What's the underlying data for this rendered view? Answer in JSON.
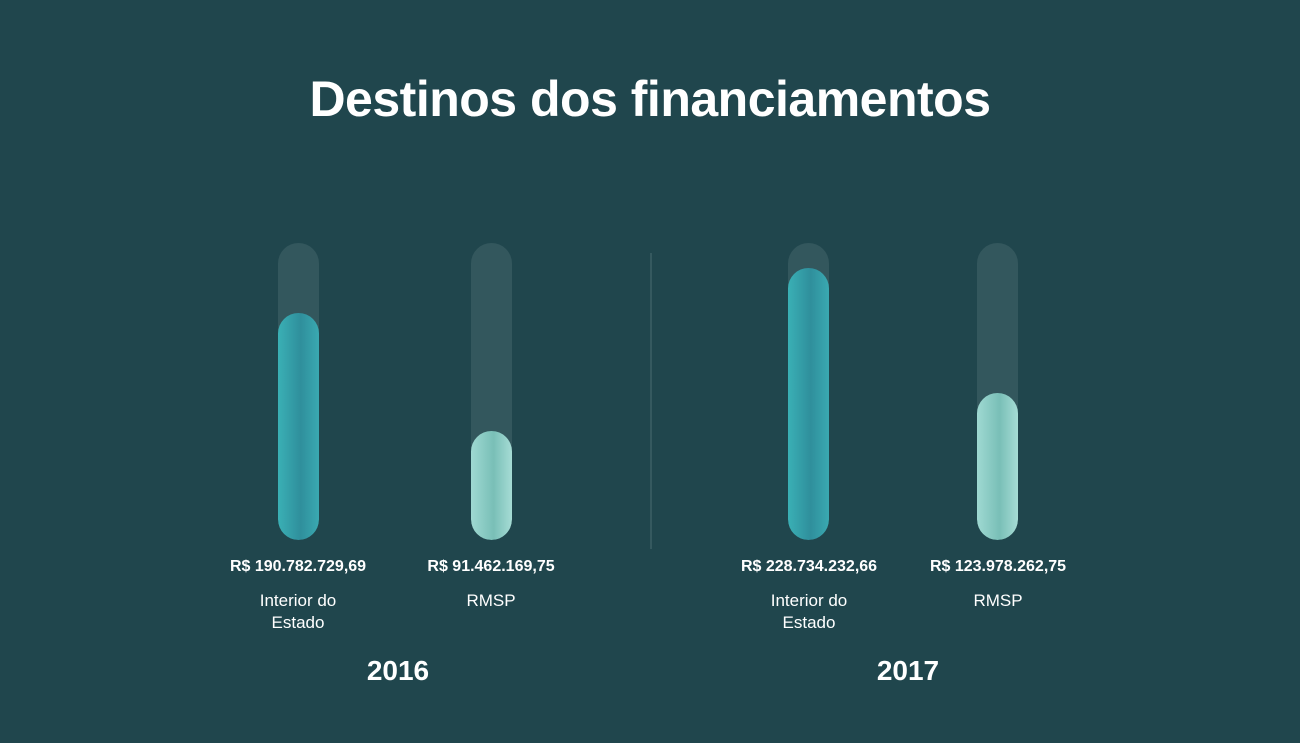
{
  "chart_data": {
    "type": "bar",
    "title": "Destinos dos financiamentos",
    "groups": [
      {
        "year": "2016",
        "bars": [
          {
            "category": "Interior do Estado",
            "value": 190782729.69,
            "label": "R$ 190.782.729,69",
            "color": "#2f9aa3"
          },
          {
            "category": "RMSP",
            "value": 91462169.75,
            "label": "R$ 91.462.169,75",
            "color": "#8fcec6"
          }
        ]
      },
      {
        "year": "2017",
        "bars": [
          {
            "category": "Interior do Estado",
            "value": 228734232.66,
            "label": "R$ 228.734.232,66",
            "color": "#2f9aa3"
          },
          {
            "category": "RMSP",
            "value": 123978262.75,
            "label": "R$ 123.978.262,75",
            "color": "#8fcec6"
          }
        ]
      }
    ],
    "ylim": [
      0,
      250000000
    ],
    "grid": false,
    "legend": "none"
  },
  "labels": {
    "cat_interior_line1": "Interior do",
    "cat_interior_line2": "Estado",
    "cat_rmsp": "RMSP"
  },
  "colors": {
    "background": "#20464d",
    "track": "#33575d",
    "teal": "#2f9aa3",
    "mint": "#8fcec6"
  }
}
